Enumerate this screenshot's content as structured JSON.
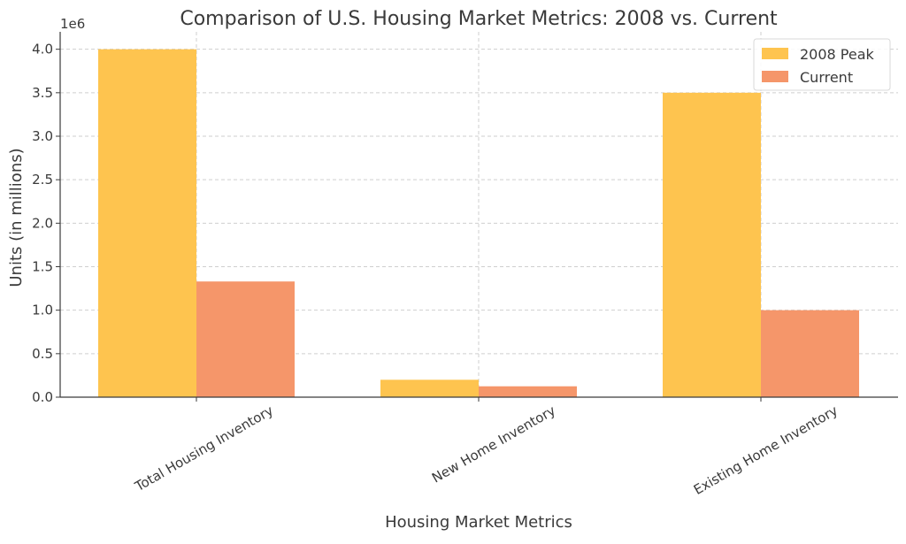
{
  "chart_data": {
    "type": "bar",
    "title": "Comparison of U.S. Housing Market Metrics: 2008 vs. Current",
    "xlabel": "Housing Market Metrics",
    "ylabel": "Units (in millions)",
    "y_offset_label": "1e6",
    "categories": [
      "Total Housing Inventory",
      "New Home Inventory",
      "Existing Home Inventory"
    ],
    "series": [
      {
        "name": "2008 Peak",
        "color": "#fec44f",
        "values": [
          4000000,
          200000,
          3500000
        ]
      },
      {
        "name": "Current",
        "color": "#f5966a",
        "values": [
          1330000,
          125000,
          1000000
        ]
      }
    ],
    "ylim": [
      0,
      4200000
    ],
    "yticks": [
      0,
      500000,
      1000000,
      1500000,
      2000000,
      2500000,
      3000000,
      3500000,
      4000000
    ],
    "ytick_labels": [
      "0.0",
      "0.5",
      "1.0",
      "1.5",
      "2.0",
      "2.5",
      "3.0",
      "3.5",
      "4.0"
    ],
    "grid": true,
    "legend_position": "top-right"
  }
}
